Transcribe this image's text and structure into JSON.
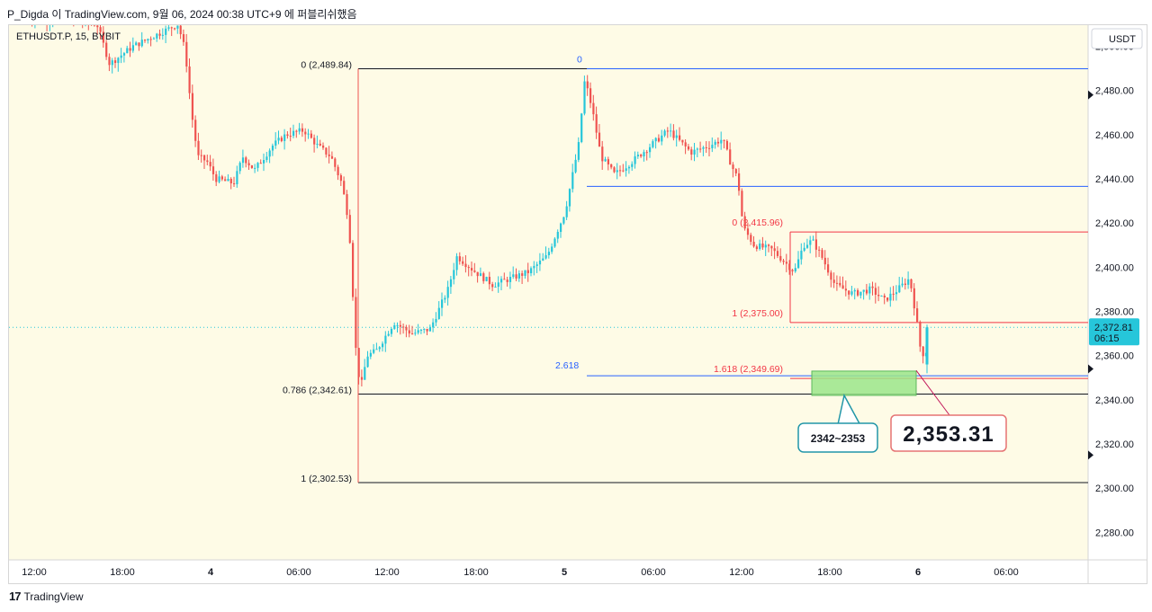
{
  "header": {
    "text": "P_Digda 이 TradingView.com, 9월 06, 2024 00:38 UTC+9 에 퍼블리쉬했음"
  },
  "footer": {
    "logo_glyph": "17",
    "brand": "TradingView"
  },
  "colors": {
    "background": "#fefbe6",
    "up": "#26c6da",
    "down": "#ef5350",
    "fib_blue": "#2962ff",
    "fib_red": "#f23645",
    "zone": "#9be58a",
    "price_tag": "#26c6da"
  },
  "chart_data": {
    "type": "candlestick",
    "symbol": "ETHUSDT.P, 15, BYBIT",
    "currency": "USDT",
    "ylim": [
      2270,
      2512
    ],
    "y_ticks": [
      "2,280.00",
      "2,300.00",
      "2,320.00",
      "2,340.00",
      "2,360.00",
      "2,380.00",
      "2,400.00",
      "2,420.00",
      "2,440.00",
      "2,460.00",
      "2,480.00",
      "2,500.00"
    ],
    "x_ticks": [
      "12:00",
      "18:00",
      "4",
      "06:00",
      "12:00",
      "18:00",
      "5",
      "06:00",
      "12:00",
      "18:00",
      "6",
      "06:00"
    ],
    "current_price": {
      "value": 2372.81,
      "label": "2,372.81",
      "countdown": "06:15"
    },
    "fib_black": {
      "levels": [
        {
          "label": "0 (2,489.84)",
          "value": 2489.84
        },
        {
          "label": "0.786 (2,342.61)",
          "value": 2342.61
        },
        {
          "label": "1 (2,302.53)",
          "value": 2302.53
        }
      ]
    },
    "fib_blue": {
      "levels": [
        {
          "label": "0",
          "value": 2489.84
        },
        {
          "label": "",
          "value": 2436.6
        },
        {
          "label": "2.618",
          "value": 2350.9
        }
      ]
    },
    "fib_red": {
      "levels": [
        {
          "label": "0 (2,415.96)",
          "value": 2415.96
        },
        {
          "label": "1 (2,375.00)",
          "value": 2375.0
        },
        {
          "label": "1.618 (2,349.69)",
          "value": 2349.69
        }
      ]
    },
    "zone": {
      "low": 2342,
      "high": 2353
    },
    "callouts": [
      {
        "text": "2342~2353"
      },
      {
        "text": "2,353.31"
      }
    ]
  }
}
